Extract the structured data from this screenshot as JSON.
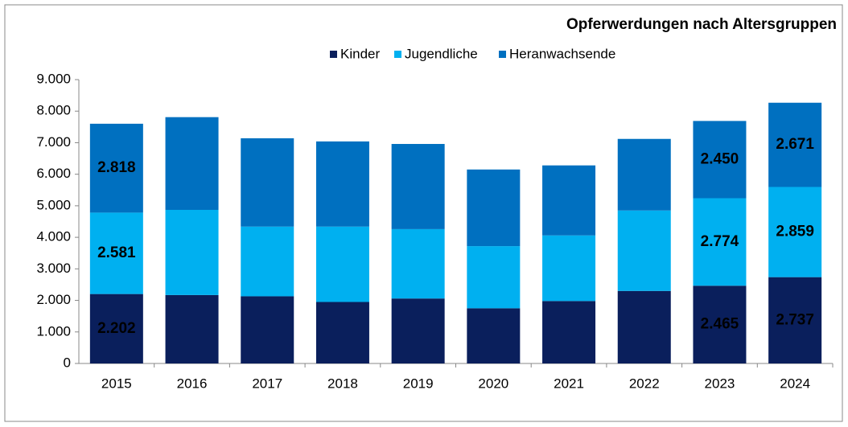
{
  "chart_data": {
    "type": "stacked_bar",
    "title": "Opferwerdungen nach Altersgruppen",
    "categories": [
      "2015",
      "2016",
      "2017",
      "2018",
      "2019",
      "2020",
      "2021",
      "2022",
      "2023",
      "2024"
    ],
    "series": [
      {
        "name": "Kinder",
        "color": "#0a1f5c",
        "label_color": "#ffffff",
        "values": [
          2202,
          2170,
          2130,
          1950,
          2060,
          1750,
          1980,
          2300,
          2465,
          2737
        ],
        "value_labels": [
          "2.202",
          null,
          null,
          null,
          null,
          null,
          null,
          null,
          "2.465",
          "2.737"
        ]
      },
      {
        "name": "Jugendliche",
        "color": "#00b0f0",
        "label_color": "#000000",
        "values": [
          2581,
          2700,
          2210,
          2390,
          2200,
          1970,
          2080,
          2550,
          2774,
          2859
        ],
        "value_labels": [
          "2.581",
          null,
          null,
          null,
          null,
          null,
          null,
          null,
          "2.774",
          "2.859"
        ]
      },
      {
        "name": "Heranwachsende",
        "color": "#0070c0",
        "label_color": "#ffffff",
        "values": [
          2818,
          2940,
          2800,
          2700,
          2700,
          2430,
          2220,
          2270,
          2450,
          2671
        ],
        "value_labels": [
          "2.818",
          null,
          null,
          null,
          null,
          null,
          null,
          null,
          "2.450",
          "2.671"
        ]
      }
    ],
    "ylim": [
      0,
      9000
    ],
    "yticks": [
      0,
      {
        "value": 1000,
        "label": "1.000"
      },
      {
        "value": 2000,
        "label": "2.000"
      },
      {
        "value": 3000,
        "label": "3.000"
      },
      {
        "value": 4000,
        "label": "4.000"
      },
      {
        "value": 5000,
        "label": "5.000"
      },
      {
        "value": 6000,
        "label": "6.000"
      },
      {
        "value": 7000,
        "label": "7.000"
      },
      {
        "value": 8000,
        "label": "8.000"
      },
      {
        "value": 9000,
        "label": "9.000"
      }
    ],
    "legend": "top"
  }
}
